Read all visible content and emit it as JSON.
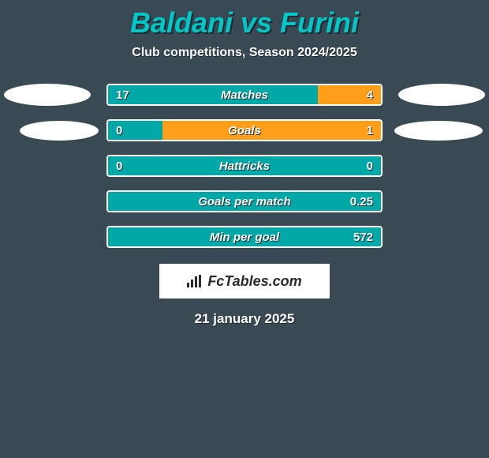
{
  "title": "Baldani vs Furini",
  "subtitle": "Club competitions, Season 2024/2025",
  "date": "21 january 2025",
  "logo_text": "FcTables.com",
  "colors": {
    "background": "#3a4a54",
    "title": "#00c8c8",
    "left_bar": "#00a8a8",
    "right_bar": "#ff9e19",
    "border": "#ffffff",
    "ellipse": "#ffffff",
    "text": "#ffffff",
    "shadow": "#1e2a30"
  },
  "rows": [
    {
      "label": "Matches",
      "left_value": "17",
      "right_value": "4",
      "left_pct": 77,
      "right_pct": 23,
      "show_ellipses": true,
      "ellipse_inset": false
    },
    {
      "label": "Goals",
      "left_value": "0",
      "right_value": "1",
      "left_pct": 20,
      "right_pct": 80,
      "show_ellipses": true,
      "ellipse_inset": true
    },
    {
      "label": "Hattricks",
      "left_value": "0",
      "right_value": "0",
      "left_pct": 100,
      "right_pct": 0,
      "show_ellipses": false,
      "neutral": true
    },
    {
      "label": "Goals per match",
      "left_value": "",
      "right_value": "0.25",
      "left_pct": 100,
      "right_pct": 0,
      "show_ellipses": false,
      "neutral": true
    },
    {
      "label": "Min per goal",
      "left_value": "",
      "right_value": "572",
      "left_pct": 100,
      "right_pct": 0,
      "show_ellipses": false,
      "neutral": true
    }
  ]
}
